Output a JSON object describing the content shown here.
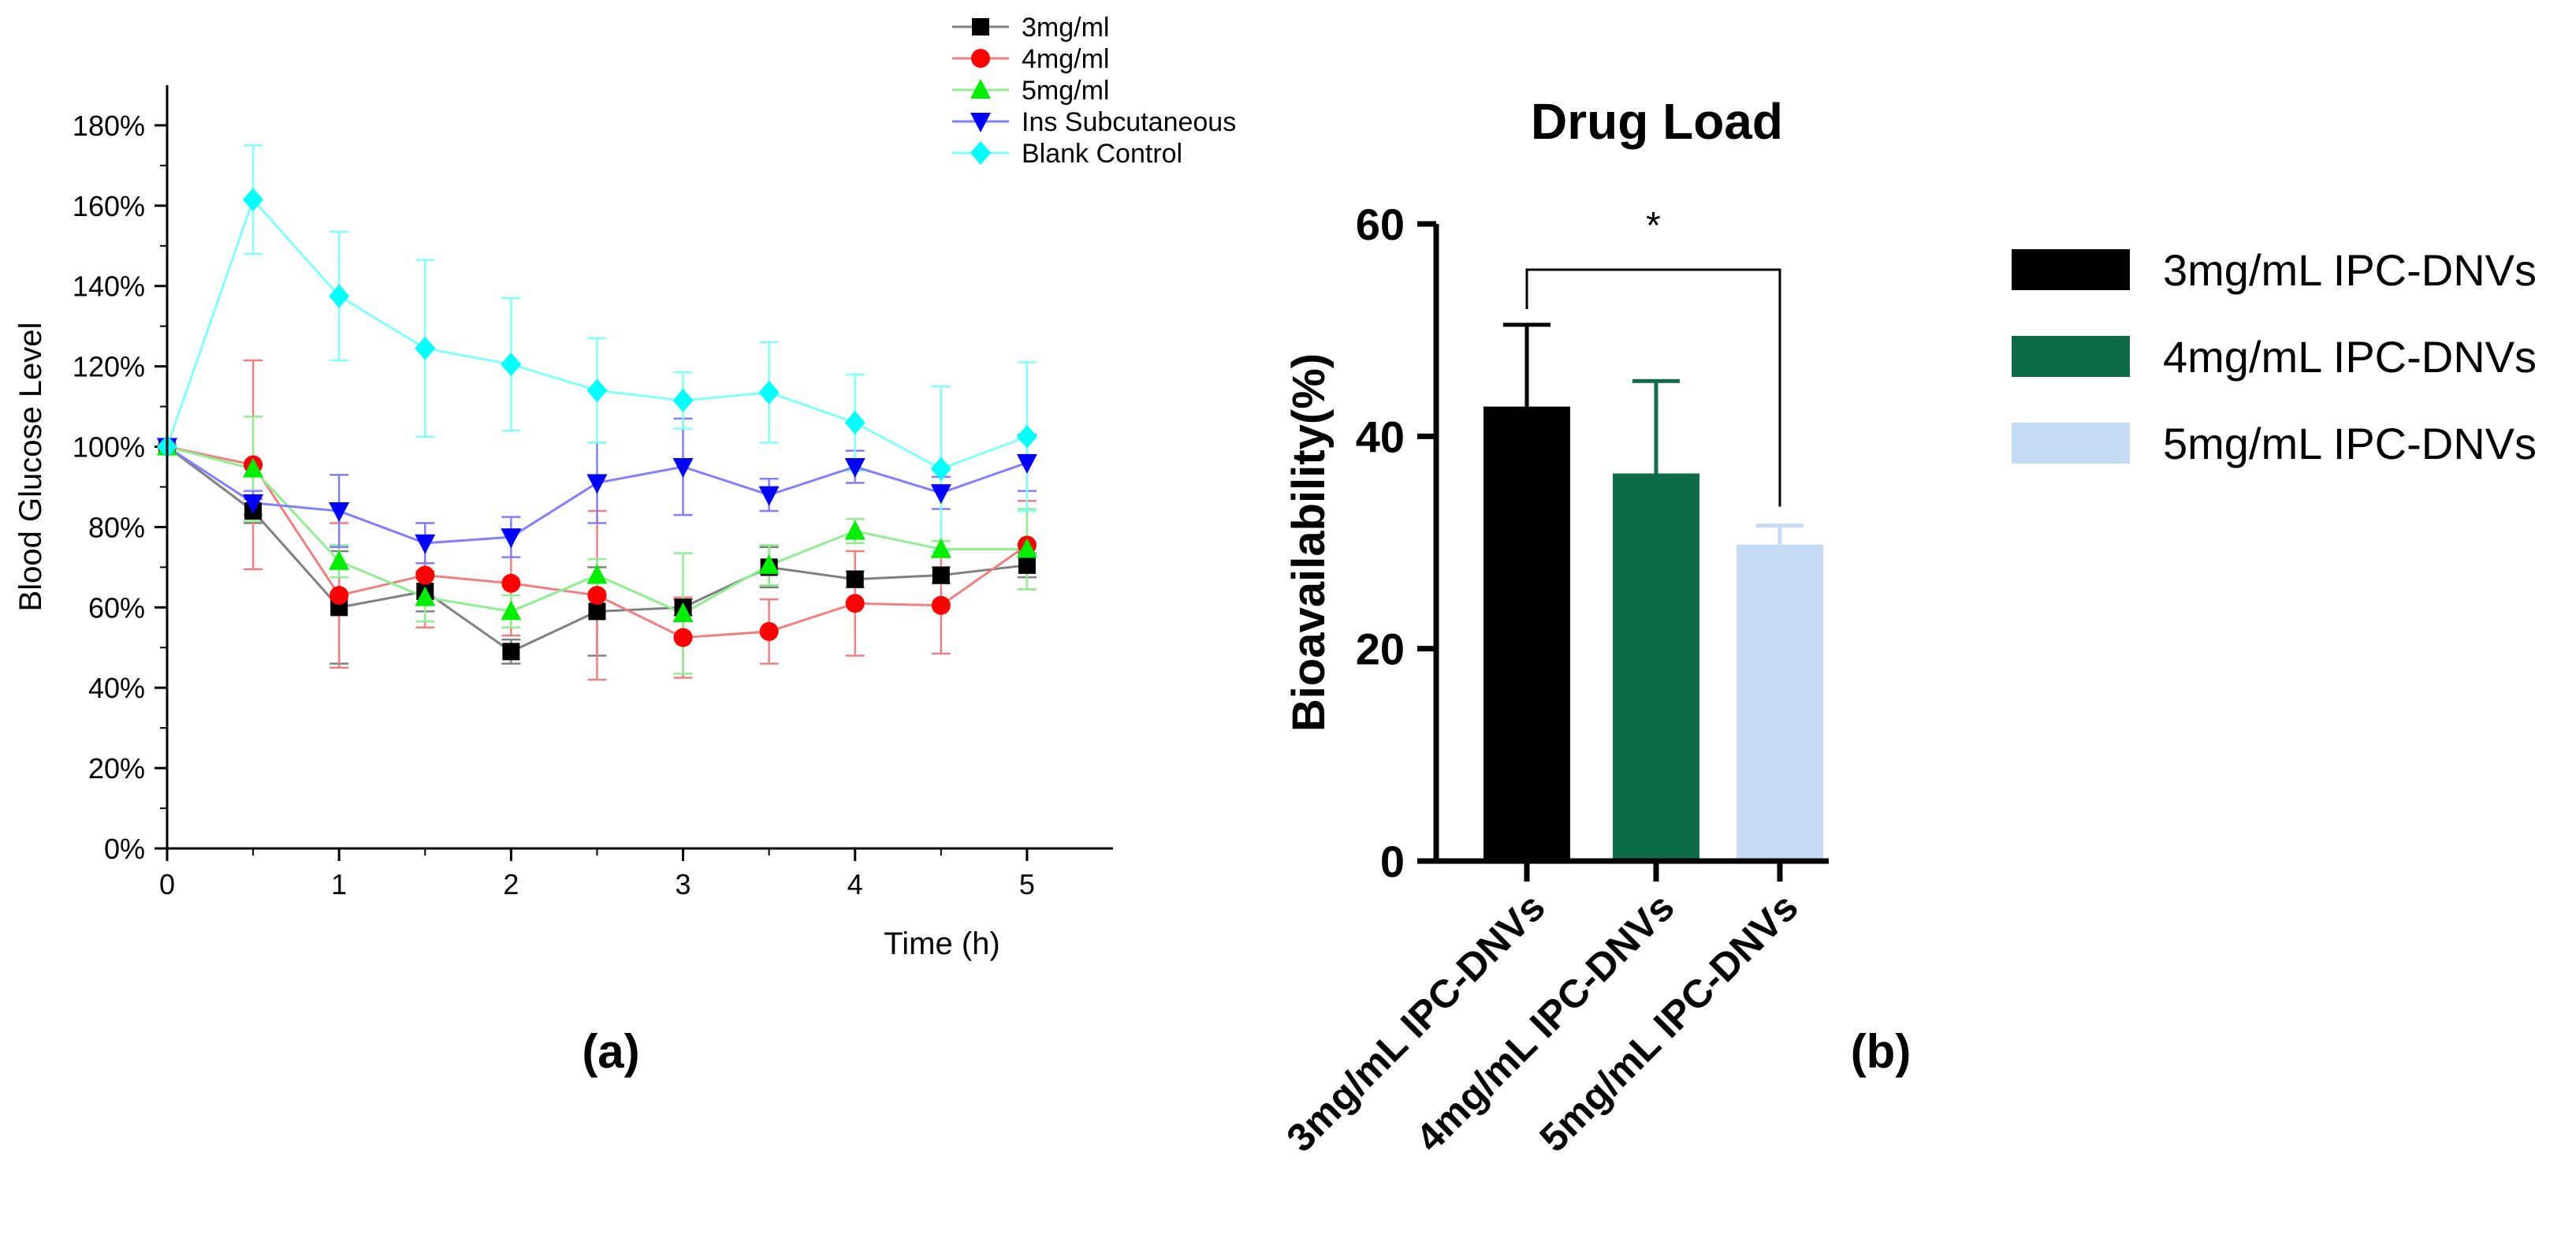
{
  "panel_labels": {
    "a": "(a)",
    "b": "(b)"
  },
  "chart_data": [
    {
      "type": "line",
      "xlabel": "Time (h)",
      "ylabel": "Blood Glucose Level",
      "xlim": [
        0,
        5.5
      ],
      "ylim": [
        0,
        1.9
      ],
      "x_ticks": [
        0,
        1,
        2,
        3,
        4,
        5
      ],
      "x_tick_labels": [
        "0",
        "1",
        "2",
        "3",
        "4",
        "5"
      ],
      "y_ticks": [
        0,
        0.2,
        0.4,
        0.6,
        0.8,
        1.0,
        1.2,
        1.4,
        1.6,
        1.8
      ],
      "y_tick_labels": [
        "0%",
        "20%",
        "40%",
        "60%",
        "80%",
        "100%",
        "120%",
        "140%",
        "160%",
        "180%"
      ],
      "legend_position": "top-center",
      "x": [
        0,
        0.5,
        1,
        1.5,
        2,
        2.5,
        3,
        3.5,
        4,
        4.5,
        5
      ],
      "series": [
        {
          "name": "3mg/ml",
          "color": "#000000",
          "line_color": "#808080",
          "marker": "square",
          "values": [
            1.0,
            0.84,
            0.6,
            0.64,
            0.49,
            0.59,
            0.6,
            0.7,
            0.67,
            0.68,
            0.705
          ],
          "errors": [
            0,
            0.03,
            0.14,
            0.05,
            0.03,
            0.11,
            0.02,
            0.05,
            0.02,
            0.02,
            0.03
          ]
        },
        {
          "name": "4mg/ml",
          "color": "#ff0000",
          "line_color": "#f08080",
          "marker": "circle",
          "values": [
            1.0,
            0.955,
            0.63,
            0.68,
            0.66,
            0.63,
            0.525,
            0.54,
            0.61,
            0.605,
            0.755
          ],
          "errors": [
            0,
            0.26,
            0.18,
            0.13,
            0.13,
            0.21,
            0.1,
            0.08,
            0.13,
            0.12,
            0.11
          ]
        },
        {
          "name": "5mg/ml",
          "color": "#00ee00",
          "line_color": "#90ee90",
          "marker": "triangle-up",
          "values": [
            1.0,
            0.945,
            0.715,
            0.625,
            0.59,
            0.68,
            0.585,
            0.705,
            0.79,
            0.745,
            0.745
          ],
          "errors": [
            0,
            0.13,
            0.04,
            0.06,
            0.04,
            0.04,
            0.15,
            0.05,
            0.03,
            0.02,
            0.1
          ]
        },
        {
          "name": "Ins Subcutaneous",
          "color": "#0000ff",
          "line_color": "#8080ff",
          "marker": "triangle-down",
          "values": [
            1.0,
            0.86,
            0.84,
            0.76,
            0.775,
            0.91,
            0.95,
            0.88,
            0.95,
            0.885,
            0.96
          ],
          "errors": [
            0,
            0.03,
            0.09,
            0.05,
            0.05,
            0.1,
            0.12,
            0.04,
            0.04,
            0.04,
            0.07
          ]
        },
        {
          "name": "Blank Control",
          "color": "#00ffff",
          "line_color": "#80ffff",
          "marker": "diamond",
          "values": [
            1.0,
            1.615,
            1.375,
            1.245,
            1.205,
            1.14,
            1.115,
            1.135,
            1.06,
            0.945,
            1.025
          ],
          "errors": [
            0,
            0.135,
            0.16,
            0.22,
            0.165,
            0.13,
            0.07,
            0.125,
            0.12,
            0.205,
            0.185
          ]
        }
      ]
    },
    {
      "type": "bar",
      "title": "Drug Load",
      "xlabel": "",
      "ylabel": "Bioavailability(%)",
      "ylim": [
        0,
        60
      ],
      "y_ticks": [
        0,
        20,
        40,
        60
      ],
      "y_tick_labels": [
        "0",
        "20",
        "40",
        "60"
      ],
      "categories": [
        "3mg/mL IPC-DNVs",
        "4mg/mL IPC-DNVs",
        "5mg/mL IPC-DNVs"
      ],
      "values": [
        42.8,
        36.5,
        29.8
      ],
      "errors": [
        7.7,
        8.7,
        1.8
      ],
      "colors": [
        "#000000",
        "#0d6b48",
        "#c6dcf4"
      ],
      "legend_position": "right",
      "legend": [
        "3mg/mL IPC-DNVs",
        "4mg/mL IPC-DNVs",
        "5mg/mL IPC-DNVs"
      ],
      "significance": {
        "from": 0,
        "to": 2,
        "label": "*"
      }
    }
  ]
}
